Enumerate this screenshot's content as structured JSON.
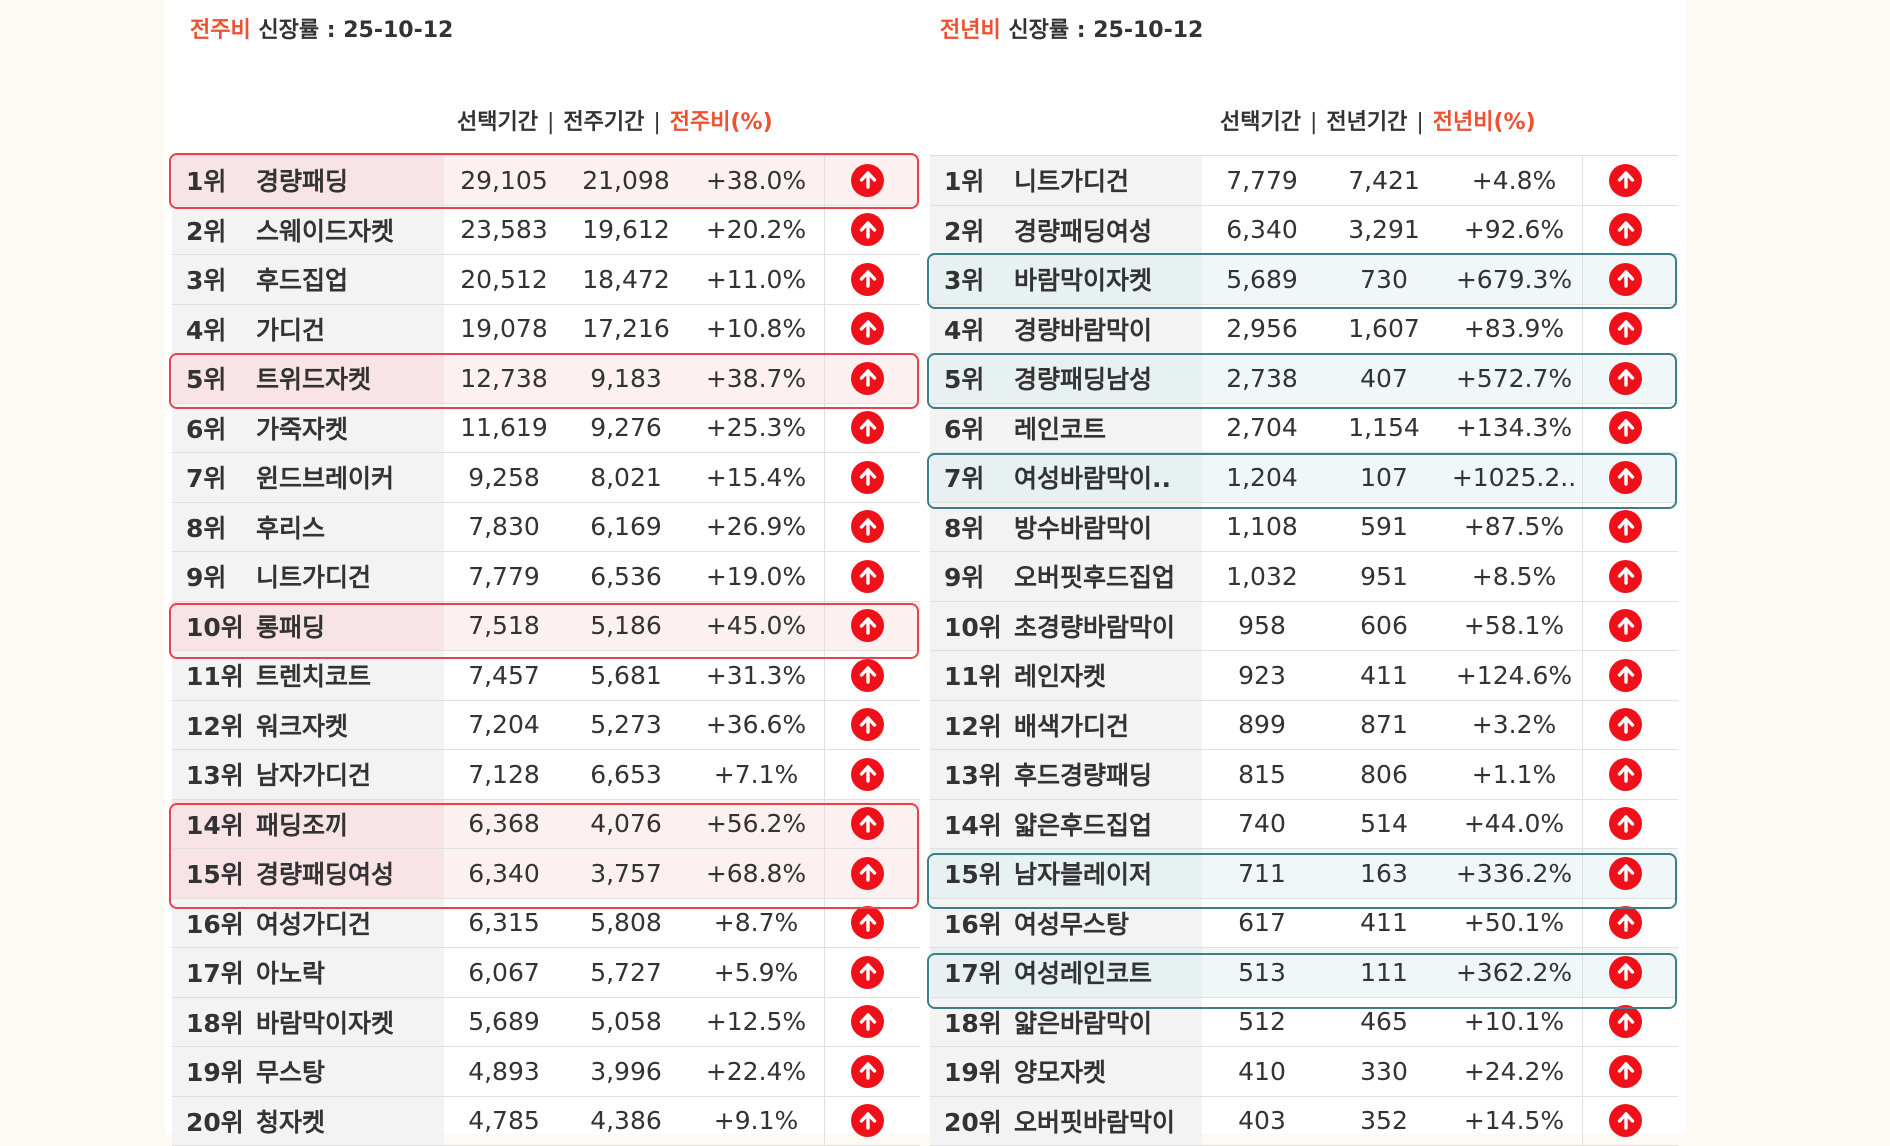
{
  "left": {
    "title_accent": "전주비",
    "title_rest": "신장률  : 25-10-12",
    "headers": {
      "selected": "선택기간",
      "previous": "전주기간",
      "ratio": "전주비(%)"
    },
    "rows": [
      {
        "rank": "1위",
        "keyword": "경량패딩",
        "selected": "29,105",
        "previous": "21,098",
        "ratio": "+38.0%"
      },
      {
        "rank": "2위",
        "keyword": "스웨이드자켓",
        "selected": "23,583",
        "previous": "19,612",
        "ratio": "+20.2%"
      },
      {
        "rank": "3위",
        "keyword": "후드집업",
        "selected": "20,512",
        "previous": "18,472",
        "ratio": "+11.0%"
      },
      {
        "rank": "4위",
        "keyword": "가디건",
        "selected": "19,078",
        "previous": "17,216",
        "ratio": "+10.8%"
      },
      {
        "rank": "5위",
        "keyword": "트위드자켓",
        "selected": "12,738",
        "previous": "9,183",
        "ratio": "+38.7%"
      },
      {
        "rank": "6위",
        "keyword": "가죽자켓",
        "selected": "11,619",
        "previous": "9,276",
        "ratio": "+25.3%"
      },
      {
        "rank": "7위",
        "keyword": "윈드브레이커",
        "selected": "9,258",
        "previous": "8,021",
        "ratio": "+15.4%"
      },
      {
        "rank": "8위",
        "keyword": "후리스",
        "selected": "7,830",
        "previous": "6,169",
        "ratio": "+26.9%"
      },
      {
        "rank": "9위",
        "keyword": "니트가디건",
        "selected": "7,779",
        "previous": "6,536",
        "ratio": "+19.0%"
      },
      {
        "rank": "10위",
        "keyword": "롱패딩",
        "selected": "7,518",
        "previous": "5,186",
        "ratio": "+45.0%"
      },
      {
        "rank": "11위",
        "keyword": "트렌치코트",
        "selected": "7,457",
        "previous": "5,681",
        "ratio": "+31.3%"
      },
      {
        "rank": "12위",
        "keyword": "워크자켓",
        "selected": "7,204",
        "previous": "5,273",
        "ratio": "+36.6%"
      },
      {
        "rank": "13위",
        "keyword": "남자가디건",
        "selected": "7,128",
        "previous": "6,653",
        "ratio": "+7.1%"
      },
      {
        "rank": "14위",
        "keyword": "패딩조끼",
        "selected": "6,368",
        "previous": "4,076",
        "ratio": "+56.2%"
      },
      {
        "rank": "15위",
        "keyword": "경량패딩여성",
        "selected": "6,340",
        "previous": "3,757",
        "ratio": "+68.8%"
      },
      {
        "rank": "16위",
        "keyword": "여성가디건",
        "selected": "6,315",
        "previous": "5,808",
        "ratio": "+8.7%"
      },
      {
        "rank": "17위",
        "keyword": "아노락",
        "selected": "6,067",
        "previous": "5,727",
        "ratio": "+5.9%"
      },
      {
        "rank": "18위",
        "keyword": "바람막이자켓",
        "selected": "5,689",
        "previous": "5,058",
        "ratio": "+12.5%"
      },
      {
        "rank": "19위",
        "keyword": "무스탕",
        "selected": "4,893",
        "previous": "3,996",
        "ratio": "+22.4%"
      },
      {
        "rank": "20위",
        "keyword": "청자켓",
        "selected": "4,785",
        "previous": "4,386",
        "ratio": "+9.1%"
      }
    ]
  },
  "right": {
    "title_accent": "전년비",
    "title_rest": "신장률 : 25-10-12",
    "headers": {
      "selected": "선택기간",
      "previous": "전년기간",
      "ratio": "전년비(%)"
    },
    "rows": [
      {
        "rank": "1위",
        "keyword": "니트가디건",
        "selected": "7,779",
        "previous": "7,421",
        "ratio": "+4.8%"
      },
      {
        "rank": "2위",
        "keyword": "경량패딩여성",
        "selected": "6,340",
        "previous": "3,291",
        "ratio": "+92.6%"
      },
      {
        "rank": "3위",
        "keyword": "바람막이자켓",
        "selected": "5,689",
        "previous": "730",
        "ratio": "+679.3%"
      },
      {
        "rank": "4위",
        "keyword": "경량바람막이",
        "selected": "2,956",
        "previous": "1,607",
        "ratio": "+83.9%"
      },
      {
        "rank": "5위",
        "keyword": "경량패딩남성",
        "selected": "2,738",
        "previous": "407",
        "ratio": "+572.7%"
      },
      {
        "rank": "6위",
        "keyword": "레인코트",
        "selected": "2,704",
        "previous": "1,154",
        "ratio": "+134.3%"
      },
      {
        "rank": "7위",
        "keyword": "여성바람막이..",
        "selected": "1,204",
        "previous": "107",
        "ratio": "+1025.2.."
      },
      {
        "rank": "8위",
        "keyword": "방수바람막이",
        "selected": "1,108",
        "previous": "591",
        "ratio": "+87.5%"
      },
      {
        "rank": "9위",
        "keyword": "오버핏후드집업",
        "selected": "1,032",
        "previous": "951",
        "ratio": "+8.5%"
      },
      {
        "rank": "10위",
        "keyword": "초경량바람막이",
        "selected": "958",
        "previous": "606",
        "ratio": "+58.1%"
      },
      {
        "rank": "11위",
        "keyword": "레인자켓",
        "selected": "923",
        "previous": "411",
        "ratio": "+124.6%"
      },
      {
        "rank": "12위",
        "keyword": "배색가디건",
        "selected": "899",
        "previous": "871",
        "ratio": "+3.2%"
      },
      {
        "rank": "13위",
        "keyword": "후드경량패딩",
        "selected": "815",
        "previous": "806",
        "ratio": "+1.1%"
      },
      {
        "rank": "14위",
        "keyword": "얇은후드집업",
        "selected": "740",
        "previous": "514",
        "ratio": "+44.0%"
      },
      {
        "rank": "15위",
        "keyword": "남자블레이저",
        "selected": "711",
        "previous": "163",
        "ratio": "+336.2%"
      },
      {
        "rank": "16위",
        "keyword": "여성무스탕",
        "selected": "617",
        "previous": "411",
        "ratio": "+50.1%"
      },
      {
        "rank": "17위",
        "keyword": "여성레인코트",
        "selected": "513",
        "previous": "111",
        "ratio": "+362.2%"
      },
      {
        "rank": "18위",
        "keyword": "얇은바람막이",
        "selected": "512",
        "previous": "465",
        "ratio": "+10.1%"
      },
      {
        "rank": "19위",
        "keyword": "양모자켓",
        "selected": "410",
        "previous": "330",
        "ratio": "+24.2%"
      },
      {
        "rank": "20위",
        "keyword": "오버핏바람막이",
        "selected": "403",
        "previous": "352",
        "ratio": "+14.5%"
      }
    ]
  },
  "icons": {
    "trend": "up-arrow-icon"
  },
  "colors": {
    "accent": "#f05030",
    "arrow": "#f0101a",
    "highlight_red": "#e8424c",
    "highlight_teal": "#3d7f86"
  },
  "highlights": {
    "left": [
      1,
      5,
      10,
      14,
      15
    ],
    "right": [
      3,
      5,
      7,
      15,
      17
    ]
  }
}
